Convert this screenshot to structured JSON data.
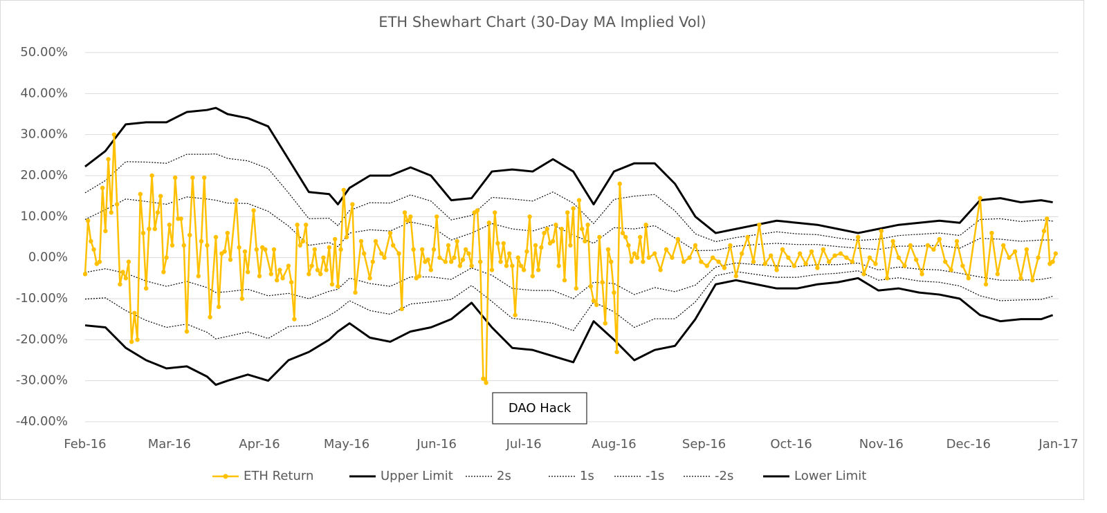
{
  "chart_data": {
    "type": "line",
    "title": "ETH Shewhart Chart (30-Day MA Implied Vol)",
    "annotation": "DAO Hack",
    "grid": true,
    "legend": "bottom",
    "xlim": [
      0,
      335
    ],
    "xticks": [
      {
        "value": 0,
        "label": "Feb-16"
      },
      {
        "value": 29,
        "label": "Mar-16"
      },
      {
        "value": 60,
        "label": "Apr-16"
      },
      {
        "value": 90,
        "label": "May-16"
      },
      {
        "value": 121,
        "label": "Jun-16"
      },
      {
        "value": 151,
        "label": "Jul-16"
      },
      {
        "value": 182,
        "label": "Aug-16"
      },
      {
        "value": 213,
        "label": "Sep-16"
      },
      {
        "value": 243,
        "label": "Oct-16"
      },
      {
        "value": 274,
        "label": "Nov-16"
      },
      {
        "value": 304,
        "label": "Dec-16"
      },
      {
        "value": 335,
        "label": "Jan-17"
      }
    ],
    "ylim": [
      -40,
      50
    ],
    "yticks": [
      {
        "value": 50,
        "label": "50.00%"
      },
      {
        "value": 40,
        "label": "40.00%"
      },
      {
        "value": 30,
        "label": "30.00%"
      },
      {
        "value": 20,
        "label": "20.00%"
      },
      {
        "value": 10,
        "label": "10.00%"
      },
      {
        "value": 0,
        "label": "0.00%"
      },
      {
        "value": -10,
        "label": "-10.00%"
      },
      {
        "value": -20,
        "label": "-20.00%"
      },
      {
        "value": -30,
        "label": "-30.00%"
      },
      {
        "value": -40,
        "label": "-40.00%"
      }
    ],
    "x": [
      0,
      7,
      14,
      21,
      28,
      35,
      42,
      45,
      49,
      56,
      63,
      70,
      77,
      84,
      87,
      91,
      98,
      105,
      112,
      119,
      126,
      133,
      140,
      147,
      154,
      161,
      168,
      175,
      182,
      189,
      196,
      203,
      210,
      217,
      224,
      231,
      238,
      245,
      252,
      259,
      266,
      273,
      280,
      287,
      294,
      301,
      308,
      315,
      322,
      329,
      333
    ],
    "series": [
      {
        "name": "ETH Return",
        "color": "#FFC000",
        "dash": "solid",
        "marker": true,
        "x": [
          0,
          1,
          2,
          3,
          4,
          5,
          6,
          7,
          8,
          9,
          10,
          11,
          12,
          13,
          14,
          15,
          16,
          17,
          18,
          19,
          20,
          21,
          22,
          23,
          24,
          25,
          26,
          27,
          28,
          29,
          30,
          31,
          32,
          33,
          34,
          35,
          36,
          37,
          39,
          40,
          41,
          42,
          43,
          45,
          46,
          47,
          48,
          49,
          50,
          52,
          53,
          54,
          55,
          56,
          58,
          59,
          60,
          61,
          62,
          64,
          65,
          66,
          67,
          68,
          70,
          71,
          72,
          73,
          74,
          75,
          76,
          77,
          78,
          79,
          80,
          81,
          82,
          83,
          84,
          85,
          86,
          87,
          88,
          89,
          90,
          92,
          93,
          95,
          96,
          98,
          99,
          100,
          102,
          103,
          105,
          106,
          108,
          109,
          110,
          111,
          112,
          113,
          114,
          115,
          116,
          117,
          118,
          119,
          120,
          121,
          122,
          124,
          125,
          126,
          127,
          128,
          129,
          130,
          131,
          132,
          133,
          134,
          135,
          136,
          137,
          138,
          139,
          140,
          141,
          142,
          143,
          144,
          145,
          146,
          147,
          148,
          149,
          150,
          151,
          152,
          153,
          154,
          155,
          156,
          157,
          158,
          159,
          160,
          161,
          162,
          163,
          164,
          165,
          166,
          167,
          168,
          169,
          170,
          171,
          172,
          173,
          174,
          175,
          176,
          177,
          178,
          179,
          180,
          181,
          182,
          183,
          184,
          185,
          186,
          187,
          188,
          189,
          190,
          191,
          192,
          193,
          194,
          196,
          198,
          200,
          202,
          204,
          206,
          208,
          210,
          212,
          214,
          216,
          218,
          220,
          222,
          224,
          226,
          228,
          230,
          232,
          234,
          236,
          238,
          240,
          242,
          244,
          246,
          248,
          250,
          252,
          254,
          256,
          258,
          260,
          262,
          264,
          266,
          268,
          270,
          272,
          274,
          276,
          278,
          280,
          282,
          284,
          286,
          288,
          290,
          292,
          294,
          296,
          298,
          300,
          302,
          304,
          308,
          310,
          312,
          314,
          316,
          318,
          320,
          322,
          324,
          326,
          328,
          330,
          331,
          332,
          333,
          334
        ],
        "values": [
          -4,
          9,
          4,
          2,
          -1.5,
          -1,
          17,
          6.5,
          24,
          11,
          30,
          13,
          -6.5,
          -3.5,
          -5,
          -1,
          -20.5,
          -13.5,
          -20,
          15.5,
          6,
          -7.5,
          7,
          20,
          7,
          11,
          15,
          -3.5,
          0,
          8,
          3,
          19.5,
          9.5,
          9.5,
          3,
          -18,
          5.5,
          19.5,
          -4.5,
          4,
          19.5,
          3,
          -14.5,
          5,
          -12,
          1,
          1.5,
          6,
          -0.5,
          14,
          2.5,
          -10,
          1.5,
          -3.5,
          11.5,
          2,
          -4.5,
          2.5,
          2,
          -4,
          2,
          -5.5,
          -3,
          -5,
          -2,
          -6,
          -15,
          8,
          3,
          4,
          8,
          -4,
          -2,
          2,
          -3,
          -4,
          0,
          -3,
          2.5,
          -6.5,
          4.5,
          -7,
          2,
          16.5,
          5,
          13,
          -8.5,
          4,
          1,
          -5,
          -1,
          4,
          1,
          0,
          6,
          3,
          1,
          -12.5,
          11,
          9,
          10,
          2,
          -5,
          -4.5,
          2,
          -1,
          -0.5,
          -3,
          2,
          10,
          0,
          -1,
          3,
          -1,
          0,
          4,
          -2,
          -0.5,
          2,
          1,
          -2,
          11,
          11.5,
          -1,
          -29.5,
          -30.5,
          8.5,
          -3,
          11,
          3.5,
          -1,
          3.5,
          -2,
          1,
          -2,
          -14,
          0,
          -2,
          -3,
          1.5,
          10,
          -4.5,
          3,
          -3,
          2.5,
          6,
          7,
          3.5,
          4,
          8,
          -2,
          7,
          -5.5,
          11,
          3,
          12,
          -7.5,
          14,
          7,
          4,
          8,
          -7,
          -10.5,
          -11.5,
          5,
          -6,
          -16,
          2,
          -1,
          -8.5,
          -23,
          18,
          6,
          5,
          3,
          -1,
          1,
          0,
          5,
          -1,
          8,
          0,
          1,
          -3,
          2,
          0,
          4.5,
          -1,
          0,
          3,
          -1,
          -2,
          0,
          -1,
          -2.5,
          3,
          -4.5,
          1,
          5,
          -1,
          8,
          -1.5,
          0.5,
          -3,
          2,
          0,
          -2,
          1,
          -1.5,
          1.5,
          -2.5,
          2,
          -1,
          0.5,
          1,
          0,
          -1,
          5,
          -4,
          0,
          -1.5,
          6.5,
          -5,
          4,
          0,
          -2,
          3,
          -0.5,
          -4,
          3,
          2,
          4.5,
          -1,
          -3,
          4,
          -2,
          -5,
          14.5,
          -6.5,
          6,
          -4,
          3,
          0,
          1.5,
          -5,
          2,
          -5.5,
          0,
          6.5,
          9.5,
          -1.5,
          -1,
          1
        ]
      },
      {
        "name": "Upper Limit",
        "color": "#000000",
        "dash": "solid",
        "values": [
          22.2,
          26,
          32.5,
          33,
          33,
          35.5,
          36,
          36.5,
          35,
          34,
          32,
          24,
          16,
          15.5,
          13,
          17,
          20,
          20,
          22,
          20,
          14,
          14.5,
          21,
          21.5,
          21,
          24,
          21,
          13,
          21,
          23,
          23,
          18,
          10,
          6,
          7,
          8,
          9,
          8.5,
          8,
          7,
          6,
          7,
          8,
          8.5,
          9,
          8.5,
          14,
          14.5,
          13.5,
          14,
          13.5
        ]
      },
      {
        "name": "2s",
        "color": "#000000",
        "dash": "dotted",
        "values": [
          15.8,
          18.8,
          23.4,
          23.3,
          23,
          25.2,
          25.2,
          25.3,
          24.2,
          23.6,
          21.7,
          15.8,
          9.5,
          9.6,
          7.8,
          11.5,
          13.4,
          13.3,
          15.3,
          13.8,
          9.2,
          10.3,
          14.7,
          14.3,
          13.8,
          16,
          13.3,
          8.3,
          14.2,
          15,
          15.4,
          11.4,
          5.8,
          3.9,
          4.9,
          5.6,
          6.3,
          5.8,
          5.6,
          4.8,
          4.2,
          4.5,
          5.4,
          5.7,
          6,
          5.4,
          9.3,
          9.5,
          8.8,
          9.2,
          8.9
        ]
      },
      {
        "name": "1s",
        "color": "#000000",
        "dash": "dotted",
        "values": [
          9.3,
          11.7,
          14.3,
          13.7,
          13,
          14.8,
          14.3,
          14,
          13.3,
          13.2,
          11.3,
          7.7,
          3,
          3.7,
          2.7,
          6,
          6.8,
          6.5,
          8.7,
          7.7,
          4.3,
          6,
          8.3,
          7,
          6.5,
          8,
          5.5,
          3.5,
          7.3,
          7,
          7.8,
          4.8,
          1.7,
          1.8,
          2.8,
          3.2,
          3.5,
          3.2,
          3.2,
          2.7,
          2.3,
          2,
          2.8,
          2.8,
          3,
          2.3,
          4.7,
          4.5,
          4,
          4.3,
          4.3
        ]
      },
      {
        "name": "-1s",
        "color": "#000000",
        "dash": "dotted",
        "values": [
          -3.6,
          -2.7,
          -3.8,
          -5.7,
          -7,
          -5.8,
          -7.3,
          -8.5,
          -8.3,
          -7.7,
          -9.3,
          -8.7,
          -10,
          -8.2,
          -7.7,
          -5,
          -6.3,
          -7,
          -4.7,
          -4.7,
          -5.3,
          -2.5,
          -4.3,
          -7.5,
          -8,
          -8,
          -10,
          -6,
          -6.3,
          -9,
          -7.3,
          -8.3,
          -6.7,
          -2.3,
          -1.3,
          -1.7,
          -2,
          -2.2,
          -1.7,
          -1.7,
          -1.3,
          -3,
          -2.3,
          -2.8,
          -3,
          -3.8,
          -4.7,
          -5.5,
          -5.5,
          -5.3,
          -4.8
        ]
      },
      {
        "name": "-2s",
        "color": "#000000",
        "dash": "dotted",
        "values": [
          -10.1,
          -9.8,
          -12.9,
          -15.3,
          -17,
          -16.2,
          -18.2,
          -19.8,
          -19.2,
          -18.1,
          -19.7,
          -16.8,
          -16.5,
          -14.1,
          -12.8,
          -10.5,
          -12.9,
          -13.8,
          -11.3,
          -10.8,
          -10.2,
          -6.8,
          -10.7,
          -14.8,
          -15.3,
          -16,
          -17.8,
          -10.8,
          -13.2,
          -17,
          -14.9,
          -14.9,
          -10.8,
          -4.4,
          -3.4,
          -4.1,
          -4.8,
          -4.8,
          -4.1,
          -3.8,
          -3.2,
          -5.5,
          -4.9,
          -5.7,
          -6,
          -6.9,
          -9.3,
          -10.5,
          -10.3,
          -10.2,
          -9.4
        ]
      },
      {
        "name": "Lower Limit",
        "color": "#000000",
        "dash": "solid",
        "values": [
          -16.5,
          -17,
          -22,
          -25,
          -27,
          -26.5,
          -29,
          -31,
          -30,
          -28.5,
          -30,
          -25,
          -23,
          -20,
          -18,
          -16,
          -19.5,
          -20.5,
          -18,
          -17,
          -15,
          -11,
          -17,
          -22,
          -22.5,
          -24,
          -25.5,
          -15.5,
          -20,
          -25,
          -22.5,
          -21.5,
          -15,
          -6.5,
          -5.5,
          -6.5,
          -7.5,
          -7.5,
          -6.5,
          -6,
          -5,
          -8,
          -7.5,
          -8.5,
          -9,
          -10,
          -14,
          -15.5,
          -15,
          -15,
          -14
        ]
      }
    ]
  }
}
